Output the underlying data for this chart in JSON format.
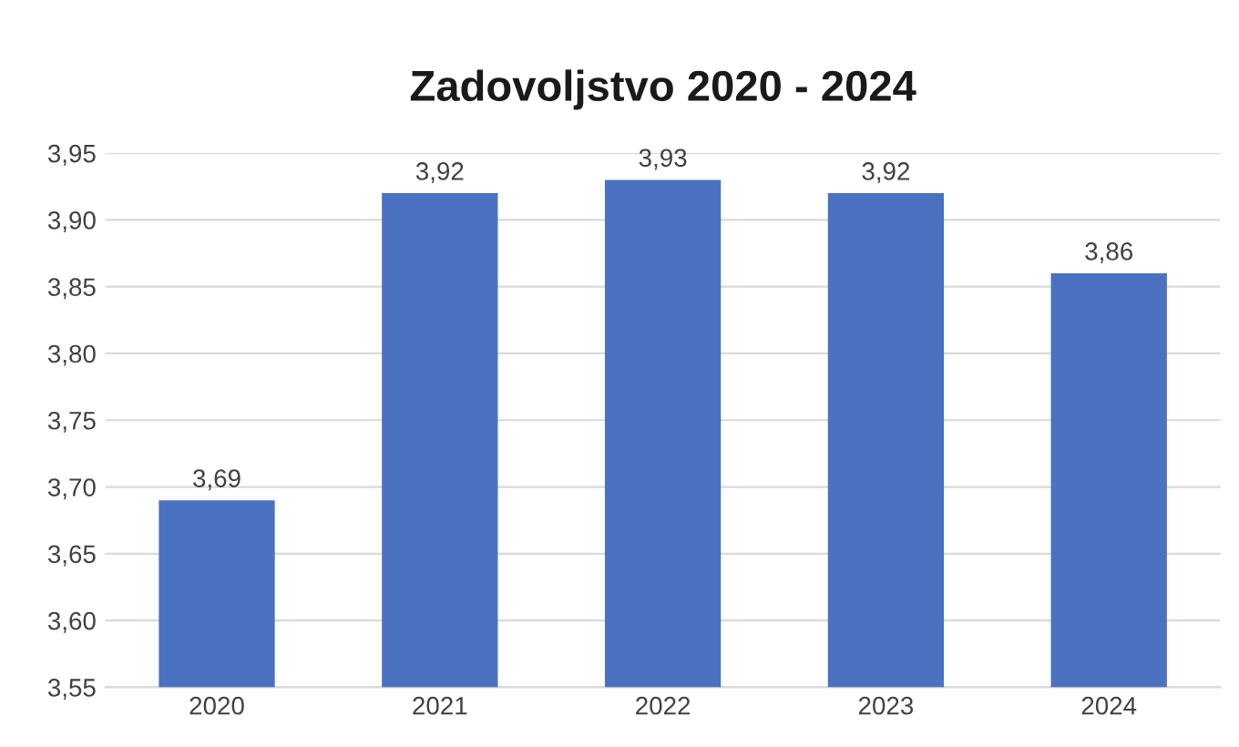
{
  "chart_data": {
    "type": "bar",
    "title": "Zadovoljstvo 2020 - 2024",
    "categories": [
      "2020",
      "2021",
      "2022",
      "2023",
      "2024"
    ],
    "values": [
      3.69,
      3.92,
      3.93,
      3.92,
      3.86
    ],
    "value_labels": [
      "3,69",
      "3,92",
      "3,93",
      "3,92",
      "3,86"
    ],
    "color": "#4a72c0",
    "ylim": [
      3.55,
      3.95
    ],
    "yticks": [
      {
        "value": 3.55,
        "label": "3,55"
      },
      {
        "value": 3.6,
        "label": "3,60"
      },
      {
        "value": 3.65,
        "label": "3,65"
      },
      {
        "value": 3.7,
        "label": "3,70"
      },
      {
        "value": 3.75,
        "label": "3,75"
      },
      {
        "value": 3.8,
        "label": "3,80"
      },
      {
        "value": 3.85,
        "label": "3,85"
      },
      {
        "value": 3.9,
        "label": "3,90"
      },
      {
        "value": 3.95,
        "label": "3,95"
      }
    ],
    "grid": "y",
    "legend": false
  }
}
